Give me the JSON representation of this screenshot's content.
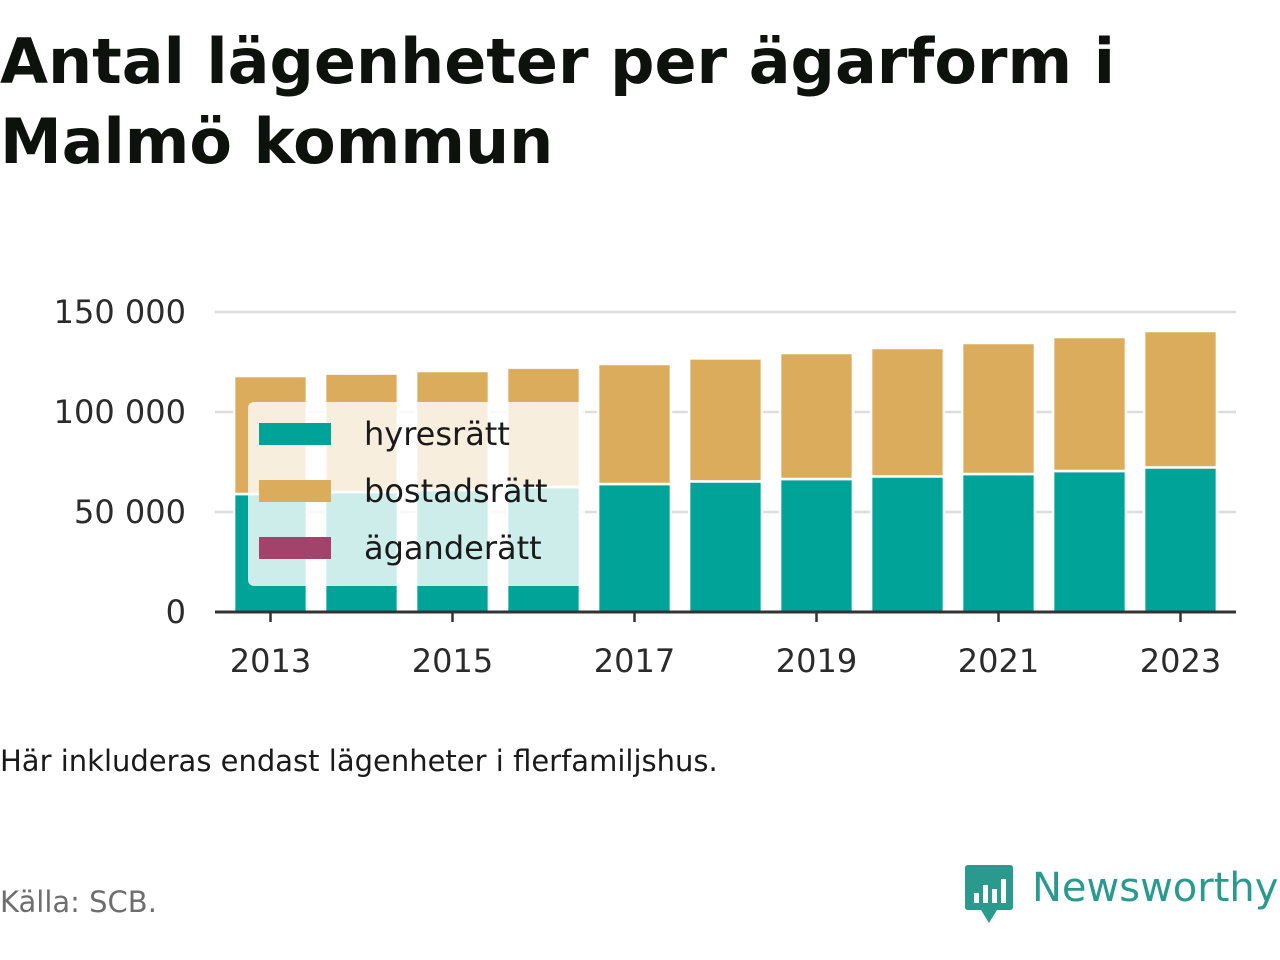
{
  "title": "Antal lägenheter per ägarform i Malmö kommun",
  "note": "Här inkluderas endast lägenheter i flerfamiljshus.",
  "source": "Källa: SCB.",
  "brand": {
    "name": "Newsworthy",
    "icon": "newsworthy-logo-icon",
    "color": "#2a9a8f"
  },
  "chart_data": {
    "type": "bar",
    "stacked": true,
    "categories": [
      2013,
      2014,
      2015,
      2016,
      2017,
      2018,
      2019,
      2020,
      2021,
      2022,
      2023
    ],
    "x_tick_labels": [
      "2013",
      "2015",
      "2017",
      "2019",
      "2021",
      "2023"
    ],
    "y_ticks": [
      0,
      50000,
      100000,
      150000
    ],
    "y_tick_labels": [
      "0",
      "50 000",
      "100 000",
      "150 000"
    ],
    "ylim": [
      0,
      150000
    ],
    "grid": "horizontal",
    "legend_position": "inside top-left",
    "series": [
      {
        "name": "hyresrätt",
        "color": "#00a398",
        "values": [
          59000,
          60000,
          61000,
          62500,
          64000,
          65300,
          66500,
          67800,
          69000,
          70500,
          72300
        ]
      },
      {
        "name": "bostadsrätt",
        "color": "#dbac5c",
        "values": [
          59000,
          59200,
          59500,
          59700,
          60000,
          61500,
          63000,
          64200,
          65500,
          67000,
          68200
        ]
      },
      {
        "name": "äganderätt",
        "color": "#a3426b",
        "values": [
          0,
          0,
          0,
          0,
          0,
          0,
          0,
          0,
          0,
          0,
          0
        ]
      }
    ]
  }
}
